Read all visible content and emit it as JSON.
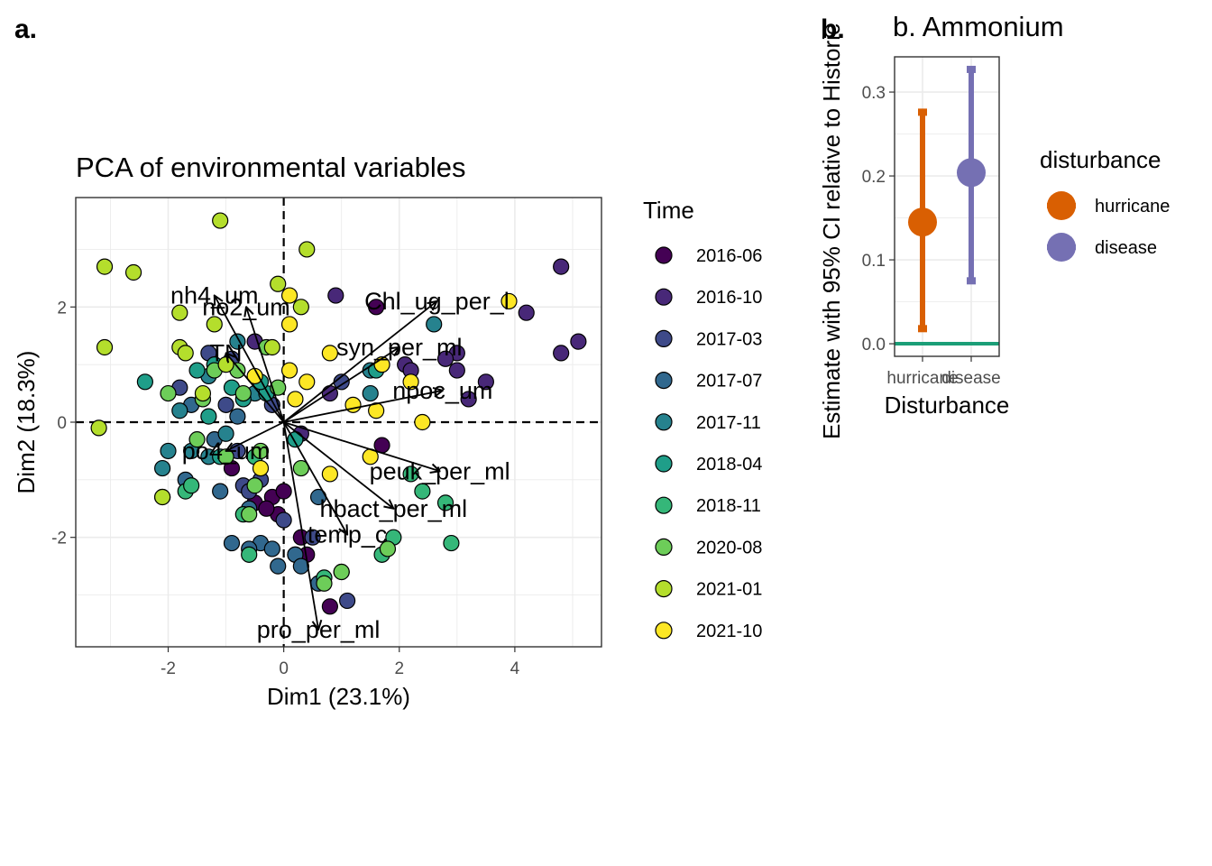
{
  "panel_a_tag": "a.",
  "panel_b_tag": "b.",
  "chart_data": [
    {
      "type": "scatter",
      "title": "PCA of environmental variables",
      "xlabel": "Dim1 (23.1%)",
      "ylabel": "Dim2 (18.3%)",
      "xlim": [
        -3.6,
        5.5
      ],
      "ylim": [
        -3.9,
        3.9
      ],
      "xticks": [
        -2,
        0,
        2,
        4
      ],
      "yticks": [
        -2,
        0,
        2
      ],
      "grid": true,
      "legend": {
        "title": "Time",
        "position": "right",
        "entries": [
          "2016-06",
          "2016-10",
          "2017-03",
          "2017-07",
          "2017-11",
          "2018-04",
          "2018-11",
          "2020-08",
          "2021-01",
          "2021-10"
        ],
        "colors": [
          "#440154",
          "#482878",
          "#3E4A89",
          "#31688E",
          "#26828E",
          "#1F9E89",
          "#35B779",
          "#6DCD59",
          "#B4DE2C",
          "#FDE725"
        ]
      },
      "arrows": [
        {
          "label": "nh4_um",
          "x": -1.2,
          "y": 2.2
        },
        {
          "label": "Chl_ug_per_l",
          "x": 2.65,
          "y": 2.1
        },
        {
          "label": "no2_um",
          "x": -0.65,
          "y": 2.0
        },
        {
          "label": "syn_per_ml",
          "x": 2.0,
          "y": 1.3
        },
        {
          "label": "TN",
          "x": -1.0,
          "y": 1.2
        },
        {
          "label": "npoc_um",
          "x": 2.75,
          "y": 0.55
        },
        {
          "label": "po4_um",
          "x": -1.0,
          "y": -0.5
        },
        {
          "label": "peuk_per_ml",
          "x": 2.7,
          "y": -0.85
        },
        {
          "label": "hbact_per_ml",
          "x": 1.9,
          "y": -1.5
        },
        {
          "label": "temp_c",
          "x": 1.1,
          "y": -1.95
        },
        {
          "label": "pro_per_ml",
          "x": 0.6,
          "y": -3.6
        }
      ],
      "points": [
        {
          "x": 1.6,
          "y": 2.0,
          "g": 0
        },
        {
          "x": 1.7,
          "y": -0.4,
          "g": 0
        },
        {
          "x": -0.2,
          "y": -1.3,
          "g": 0
        },
        {
          "x": -0.1,
          "y": -1.6,
          "g": 0
        },
        {
          "x": -0.5,
          "y": -1.4,
          "g": 0
        },
        {
          "x": 0.3,
          "y": -2.0,
          "g": 0
        },
        {
          "x": 0.4,
          "y": -2.3,
          "g": 0
        },
        {
          "x": -0.9,
          "y": -0.8,
          "g": 0
        },
        {
          "x": 0.0,
          "y": -1.2,
          "g": 0
        },
        {
          "x": -0.3,
          "y": -1.5,
          "g": 0
        },
        {
          "x": 0.8,
          "y": -3.2,
          "g": 0
        },
        {
          "x": 0.9,
          "y": 2.2,
          "g": 1
        },
        {
          "x": 3.0,
          "y": 1.2,
          "g": 1
        },
        {
          "x": 3.2,
          "y": 0.4,
          "g": 1
        },
        {
          "x": 2.8,
          "y": 1.1,
          "g": 1
        },
        {
          "x": 4.8,
          "y": 2.7,
          "g": 1
        },
        {
          "x": 4.2,
          "y": 1.9,
          "g": 1
        },
        {
          "x": 5.1,
          "y": 1.4,
          "g": 1
        },
        {
          "x": 4.8,
          "y": 1.2,
          "g": 1
        },
        {
          "x": 3.0,
          "y": 0.9,
          "g": 1
        },
        {
          "x": 3.5,
          "y": 0.7,
          "g": 1
        },
        {
          "x": 0.8,
          "y": 0.5,
          "g": 1
        },
        {
          "x": 2.1,
          "y": 1.0,
          "g": 1
        },
        {
          "x": 2.2,
          "y": 0.9,
          "g": 1
        },
        {
          "x": -0.5,
          "y": 1.4,
          "g": 1
        },
        {
          "x": 0.3,
          "y": -0.2,
          "g": 1
        },
        {
          "x": -1.8,
          "y": 0.6,
          "g": 2
        },
        {
          "x": -1.0,
          "y": 0.3,
          "g": 2
        },
        {
          "x": -0.8,
          "y": -0.5,
          "g": 2
        },
        {
          "x": -0.4,
          "y": -1.0,
          "g": 2
        },
        {
          "x": -0.7,
          "y": -1.1,
          "g": 2
        },
        {
          "x": 0.5,
          "y": -2.0,
          "g": 2
        },
        {
          "x": -1.3,
          "y": 1.2,
          "g": 2
        },
        {
          "x": -0.9,
          "y": 1.1,
          "g": 2
        },
        {
          "x": 1.1,
          "y": -3.1,
          "g": 2
        },
        {
          "x": 0.2,
          "y": -2.3,
          "g": 2
        },
        {
          "x": 0.0,
          "y": -1.7,
          "g": 2
        },
        {
          "x": -0.6,
          "y": -1.2,
          "g": 2
        },
        {
          "x": -0.2,
          "y": 0.3,
          "g": 2
        },
        {
          "x": 1.0,
          "y": 0.7,
          "g": 2
        },
        {
          "x": -1.1,
          "y": -1.2,
          "g": 3
        },
        {
          "x": -0.6,
          "y": -1.5,
          "g": 3
        },
        {
          "x": 0.6,
          "y": -1.3,
          "g": 3
        },
        {
          "x": -0.4,
          "y": -2.1,
          "g": 3
        },
        {
          "x": -0.2,
          "y": -2.2,
          "g": 3
        },
        {
          "x": 0.2,
          "y": -2.3,
          "g": 3
        },
        {
          "x": -0.6,
          "y": -2.2,
          "g": 3
        },
        {
          "x": 0.6,
          "y": -2.8,
          "g": 3
        },
        {
          "x": 0.3,
          "y": -2.5,
          "g": 3
        },
        {
          "x": -1.7,
          "y": -1.0,
          "g": 3
        },
        {
          "x": -0.9,
          "y": -2.1,
          "g": 3
        },
        {
          "x": -0.1,
          "y": -2.5,
          "g": 3
        },
        {
          "x": -1.2,
          "y": -0.3,
          "g": 3
        },
        {
          "x": -1.6,
          "y": 0.3,
          "g": 3
        },
        {
          "x": -0.8,
          "y": 0.1,
          "g": 3
        },
        {
          "x": -2.0,
          "y": -0.5,
          "g": 4
        },
        {
          "x": -2.1,
          "y": -0.8,
          "g": 4
        },
        {
          "x": -1.6,
          "y": -0.5,
          "g": 4
        },
        {
          "x": -1.3,
          "y": -0.6,
          "g": 4
        },
        {
          "x": 2.6,
          "y": 1.7,
          "g": 4
        },
        {
          "x": 1.5,
          "y": 0.9,
          "g": 4
        },
        {
          "x": 1.5,
          "y": 0.5,
          "g": 4
        },
        {
          "x": -1.3,
          "y": 0.8,
          "g": 4
        },
        {
          "x": -0.8,
          "y": 1.4,
          "g": 4
        },
        {
          "x": -1.8,
          "y": 0.2,
          "g": 4
        },
        {
          "x": -0.5,
          "y": 0.5,
          "g": 4
        },
        {
          "x": -1.0,
          "y": -0.2,
          "g": 4
        },
        {
          "x": -2.4,
          "y": 0.7,
          "g": 5
        },
        {
          "x": -1.5,
          "y": 0.9,
          "g": 5
        },
        {
          "x": -1.2,
          "y": 1.0,
          "g": 5
        },
        {
          "x": -0.9,
          "y": 0.6,
          "g": 5
        },
        {
          "x": -1.3,
          "y": 0.1,
          "g": 5
        },
        {
          "x": -1.1,
          "y": -0.6,
          "g": 5
        },
        {
          "x": 0.2,
          "y": -0.3,
          "g": 5
        },
        {
          "x": -0.3,
          "y": 0.5,
          "g": 5
        },
        {
          "x": 1.6,
          "y": 0.9,
          "g": 5
        },
        {
          "x": -0.4,
          "y": 0.7,
          "g": 5
        },
        {
          "x": -0.7,
          "y": 0.4,
          "g": 5
        },
        {
          "x": 2.2,
          "y": -0.9,
          "g": 6
        },
        {
          "x": 2.4,
          "y": -1.2,
          "g": 6
        },
        {
          "x": 2.8,
          "y": -1.4,
          "g": 6
        },
        {
          "x": 2.9,
          "y": -2.1,
          "g": 6
        },
        {
          "x": 1.9,
          "y": -2.0,
          "g": 6
        },
        {
          "x": 1.7,
          "y": -2.3,
          "g": 6
        },
        {
          "x": 1.0,
          "y": -2.6,
          "g": 6
        },
        {
          "x": 0.7,
          "y": -2.7,
          "g": 6
        },
        {
          "x": -0.6,
          "y": -2.3,
          "g": 6
        },
        {
          "x": -0.7,
          "y": -1.6,
          "g": 6
        },
        {
          "x": -1.7,
          "y": -1.2,
          "g": 6
        },
        {
          "x": -2.1,
          "y": -1.3,
          "g": 6
        },
        {
          "x": -1.6,
          "y": -1.1,
          "g": 6
        },
        {
          "x": -0.5,
          "y": -0.6,
          "g": 6
        },
        {
          "x": -2.0,
          "y": 0.5,
          "g": 7
        },
        {
          "x": -1.4,
          "y": 0.4,
          "g": 7
        },
        {
          "x": -1.2,
          "y": 0.9,
          "g": 7
        },
        {
          "x": -0.7,
          "y": 0.5,
          "g": 7
        },
        {
          "x": -1.5,
          "y": -0.3,
          "g": 7
        },
        {
          "x": -1.0,
          "y": -0.6,
          "g": 7
        },
        {
          "x": -0.4,
          "y": -0.5,
          "g": 7
        },
        {
          "x": -0.6,
          "y": -1.6,
          "g": 7
        },
        {
          "x": -0.5,
          "y": -1.1,
          "g": 7
        },
        {
          "x": 0.3,
          "y": -0.8,
          "g": 7
        },
        {
          "x": -0.1,
          "y": 0.6,
          "g": 7
        },
        {
          "x": 0.7,
          "y": -2.8,
          "g": 7
        },
        {
          "x": 1.0,
          "y": -2.6,
          "g": 7
        },
        {
          "x": 1.8,
          "y": -2.2,
          "g": 7
        },
        {
          "x": -0.8,
          "y": 0.9,
          "g": 7
        },
        {
          "x": -0.3,
          "y": 1.3,
          "g": 7
        },
        {
          "x": -3.1,
          "y": 2.7,
          "g": 8
        },
        {
          "x": -2.6,
          "y": 2.6,
          "g": 8
        },
        {
          "x": -1.1,
          "y": 3.5,
          "g": 8
        },
        {
          "x": 0.4,
          "y": 3.0,
          "g": 8
        },
        {
          "x": -3.1,
          "y": 1.3,
          "g": 8
        },
        {
          "x": -1.8,
          "y": 1.9,
          "g": 8
        },
        {
          "x": -1.2,
          "y": 1.7,
          "g": 8
        },
        {
          "x": -0.1,
          "y": 2.4,
          "g": 8
        },
        {
          "x": 0.3,
          "y": 2.0,
          "g": 8
        },
        {
          "x": -1.8,
          "y": 1.3,
          "g": 8
        },
        {
          "x": -1.7,
          "y": 1.2,
          "g": 8
        },
        {
          "x": -0.2,
          "y": 1.3,
          "g": 8
        },
        {
          "x": -3.2,
          "y": -0.1,
          "g": 8
        },
        {
          "x": -2.1,
          "y": -1.3,
          "g": 8
        },
        {
          "x": -1.4,
          "y": 0.5,
          "g": 8
        },
        {
          "x": -1.0,
          "y": 1.0,
          "g": 8
        },
        {
          "x": 0.1,
          "y": 2.2,
          "g": 9
        },
        {
          "x": 0.1,
          "y": 1.7,
          "g": 9
        },
        {
          "x": 0.8,
          "y": 1.2,
          "g": 9
        },
        {
          "x": 1.7,
          "y": 1.0,
          "g": 9
        },
        {
          "x": 3.9,
          "y": 2.1,
          "g": 9
        },
        {
          "x": 2.2,
          "y": 0.7,
          "g": 9
        },
        {
          "x": 2.4,
          "y": 0.0,
          "g": 9
        },
        {
          "x": 1.2,
          "y": 0.3,
          "g": 9
        },
        {
          "x": 1.6,
          "y": 0.2,
          "g": 9
        },
        {
          "x": 0.2,
          "y": 0.4,
          "g": 9
        },
        {
          "x": 0.4,
          "y": 0.7,
          "g": 9
        },
        {
          "x": 1.5,
          "y": -0.6,
          "g": 9
        },
        {
          "x": 0.8,
          "y": -0.9,
          "g": 9
        },
        {
          "x": -0.4,
          "y": -0.8,
          "g": 9
        },
        {
          "x": -0.5,
          "y": 0.8,
          "g": 9
        },
        {
          "x": 0.1,
          "y": 0.9,
          "g": 9
        }
      ]
    },
    {
      "type": "errorbar",
      "title": "b. Ammonium",
      "xlabel": "Disturbance",
      "ylabel": "Estimate with 95% CI relative to Historic",
      "categories": [
        "hurricane",
        "disease"
      ],
      "ylim": [
        -0.015,
        0.342
      ],
      "yticks": [
        0.0,
        0.1,
        0.2,
        0.3
      ],
      "ytick_labels": [
        "0.0",
        "0.1",
        "0.2",
        "0.3"
      ],
      "reference_line": {
        "y": 0.0,
        "color": "#1B9E77"
      },
      "grid": true,
      "legend": {
        "title": "disturbance",
        "position": "right"
      },
      "series": [
        {
          "name": "hurricane",
          "estimate": 0.145,
          "lower": 0.018,
          "upper": 0.276,
          "color": "#D95F02"
        },
        {
          "name": "disease",
          "estimate": 0.204,
          "lower": 0.075,
          "upper": 0.327,
          "color": "#7570B3"
        }
      ]
    }
  ]
}
